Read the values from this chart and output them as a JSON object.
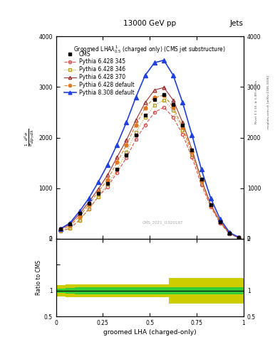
{
  "title_top": "13000 GeV pp",
  "title_right": "Jets",
  "xlabel": "groomed LHA (charged-only)",
  "ylabel_ratio": "Ratio to CMS",
  "watermark": "CMS_2021_I1920187",
  "right_label": "Rivet 3.1.10, ≥ 3.3M events",
  "right_label2": "mcplots.cern.ch [arXiv:1306.3436]",
  "x_data": [
    0.025,
    0.075,
    0.125,
    0.175,
    0.225,
    0.275,
    0.325,
    0.375,
    0.425,
    0.475,
    0.525,
    0.575,
    0.625,
    0.675,
    0.725,
    0.775,
    0.825,
    0.875,
    0.925,
    0.975
  ],
  "cms_y": [
    200,
    300,
    500,
    700,
    900,
    1100,
    1380,
    1650,
    2050,
    2450,
    2750,
    2850,
    2650,
    2250,
    1750,
    1180,
    680,
    340,
    110,
    30
  ],
  "p6_345_y": [
    150,
    210,
    370,
    590,
    830,
    1030,
    1310,
    1600,
    1960,
    2250,
    2500,
    2600,
    2400,
    2060,
    1610,
    1070,
    630,
    310,
    95,
    22
  ],
  "p6_346_y": [
    150,
    210,
    370,
    590,
    830,
    1080,
    1370,
    1710,
    2100,
    2400,
    2640,
    2740,
    2540,
    2150,
    1660,
    1120,
    660,
    330,
    105,
    22
  ],
  "p6_370_y": [
    195,
    290,
    490,
    730,
    980,
    1260,
    1610,
    1950,
    2340,
    2690,
    2940,
    2990,
    2740,
    2300,
    1760,
    1170,
    680,
    340,
    106,
    22
  ],
  "p6_default_y": [
    175,
    260,
    440,
    680,
    930,
    1170,
    1510,
    1850,
    2250,
    2590,
    2790,
    2840,
    2600,
    2200,
    1710,
    1150,
    660,
    330,
    105,
    22
  ],
  "p8_default_y": [
    200,
    315,
    540,
    800,
    1120,
    1465,
    1860,
    2300,
    2790,
    3230,
    3480,
    3530,
    3230,
    2690,
    2050,
    1370,
    800,
    390,
    125,
    28
  ],
  "ylim_main": [
    0,
    4000
  ],
  "ylim_ratio": [
    0.5,
    2.0
  ],
  "color_cms": "#000000",
  "color_p6_345": "#e05050",
  "color_p6_346": "#b8a020",
  "color_p6_370": "#a03030",
  "color_p6_default": "#e07820",
  "color_p8_default": "#2040e0",
  "green_inner_color": "#33cc33",
  "yellow_outer_color": "#cccc00",
  "ratio_green_lo": [
    0.955,
    0.945,
    0.935,
    0.935,
    0.935,
    0.935,
    0.935,
    0.935,
    0.935,
    0.935,
    0.935,
    0.935,
    0.935,
    0.935,
    0.93,
    0.93,
    0.93,
    0.93,
    0.93,
    0.93
  ],
  "ratio_green_hi": [
    1.045,
    1.055,
    1.065,
    1.065,
    1.065,
    1.065,
    1.065,
    1.065,
    1.065,
    1.065,
    1.065,
    1.065,
    1.065,
    1.065,
    1.07,
    1.07,
    1.07,
    1.07,
    1.07,
    1.07
  ],
  "ratio_yellow_lo": [
    0.885,
    0.875,
    0.875,
    0.875,
    0.875,
    0.875,
    0.875,
    0.875,
    0.875,
    0.875,
    0.875,
    0.875,
    0.75,
    0.75,
    0.75,
    0.75,
    0.75,
    0.75,
    0.75,
    0.75
  ],
  "ratio_yellow_hi": [
    1.115,
    1.125,
    1.125,
    1.125,
    1.125,
    1.125,
    1.125,
    1.125,
    1.125,
    1.125,
    1.125,
    1.125,
    1.25,
    1.25,
    1.25,
    1.25,
    1.25,
    1.25,
    1.25,
    1.25
  ]
}
